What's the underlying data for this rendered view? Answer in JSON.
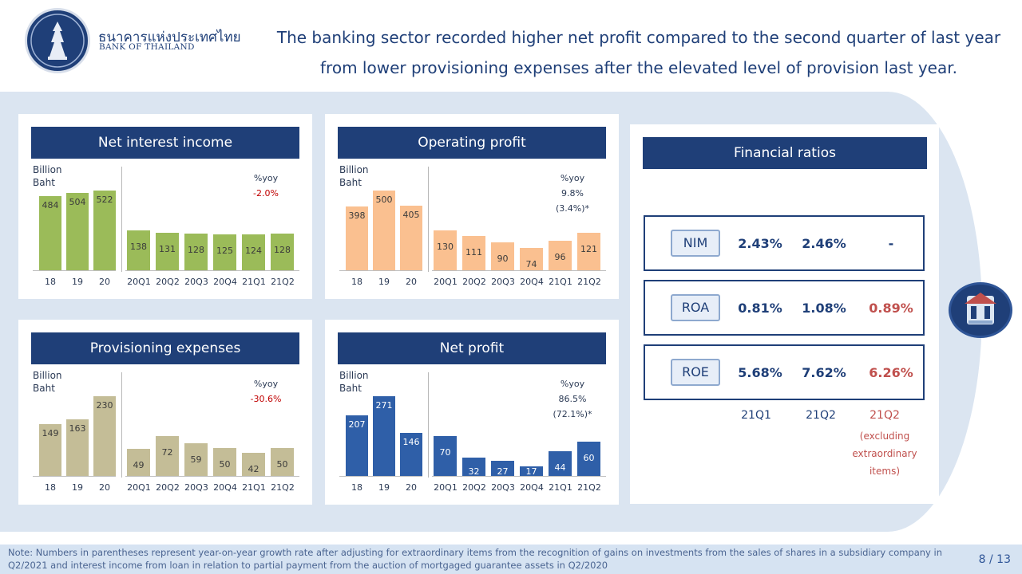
{
  "header": {
    "org_thai": "ธนาคารแห่งประเทศไทย",
    "org_en": "BANK OF THAILAND",
    "title_line1": "The banking sector recorded higher net profit compared to the second quarter of last year",
    "title_line2": "from lower provisioning expenses after the elevated level of provision last year."
  },
  "chart_data": [
    {
      "type": "bar",
      "title": "Net interest income",
      "ylabel_line1": "Billion",
      "ylabel_line2": "Baht",
      "yoy_label": "%yoy",
      "yoy_value": "-2.0%",
      "yoy_adjusted": "",
      "color": "#9bbb59",
      "annual": {
        "categories": [
          "18",
          "19",
          "20"
        ],
        "values": [
          484,
          504,
          522
        ]
      },
      "quarterly": {
        "categories": [
          "20Q1",
          "20Q2",
          "20Q3",
          "20Q4",
          "21Q1",
          "21Q2"
        ],
        "values": [
          138,
          131,
          128,
          125,
          124,
          128
        ]
      }
    },
    {
      "type": "bar",
      "title": "Operating profit",
      "ylabel_line1": "Billion",
      "ylabel_line2": "Baht",
      "yoy_label": "%yoy",
      "yoy_value": "9.8%",
      "yoy_adjusted": "(3.4%)*",
      "color": "#fac090",
      "annual": {
        "categories": [
          "18",
          "19",
          "20"
        ],
        "values": [
          398,
          500,
          405
        ]
      },
      "quarterly": {
        "categories": [
          "20Q1",
          "20Q2",
          "20Q3",
          "20Q4",
          "21Q1",
          "21Q2"
        ],
        "values": [
          130,
          111,
          90,
          74,
          96,
          121
        ]
      }
    },
    {
      "type": "bar",
      "title": "Provisioning expenses",
      "ylabel_line1": "Billion",
      "ylabel_line2": "Baht",
      "yoy_label": "%yoy",
      "yoy_value": "-30.6%",
      "yoy_adjusted": "",
      "color": "#c4bd97",
      "annual": {
        "categories": [
          "18",
          "19",
          "20"
        ],
        "values": [
          149,
          163,
          230
        ]
      },
      "quarterly": {
        "categories": [
          "20Q1",
          "20Q2",
          "20Q3",
          "20Q4",
          "21Q1",
          "21Q2"
        ],
        "values": [
          49,
          72,
          59,
          50,
          42,
          50
        ]
      }
    },
    {
      "type": "bar",
      "title": "Net profit",
      "ylabel_line1": "Billion",
      "ylabel_line2": "Baht",
      "yoy_label": "%yoy",
      "yoy_value": "86.5%",
      "yoy_adjusted": "(72.1%)*",
      "color": "#2f5fa8",
      "annual": {
        "categories": [
          "18",
          "19",
          "20"
        ],
        "values": [
          207,
          271,
          146
        ]
      },
      "quarterly": {
        "categories": [
          "20Q1",
          "20Q2",
          "20Q3",
          "20Q4",
          "21Q1",
          "21Q2"
        ],
        "values": [
          70,
          32,
          27,
          17,
          44,
          60
        ]
      }
    }
  ],
  "ratios": {
    "title": "Financial ratios",
    "rows": [
      {
        "label": "NIM",
        "q1": "2.43%",
        "q2": "2.46%",
        "q2x": "-"
      },
      {
        "label": "ROA",
        "q1": "0.81%",
        "q2": "1.08%",
        "q2x": "0.89%"
      },
      {
        "label": "ROE",
        "q1": "5.68%",
        "q2": "7.62%",
        "q2x": "6.26%"
      }
    ],
    "columns": [
      "21Q1",
      "21Q2",
      "21Q2"
    ],
    "note_lines": [
      "(excluding",
      "extraordinary",
      "items)"
    ]
  },
  "icons": {
    "logo": "bank-of-thailand-emblem-icon",
    "side": "bank-building-icon"
  },
  "footer": {
    "note": "Note: Numbers in parentheses represent year-on-year growth rate after adjusting for extraordinary items from the recognition of gains on investments from the sales of shares in a subsidiary company in Q2/2021 and interest income from loan in relation to partial payment from the auction of mortgaged guarantee assets in Q2/2020",
    "page": "8 / 13"
  }
}
